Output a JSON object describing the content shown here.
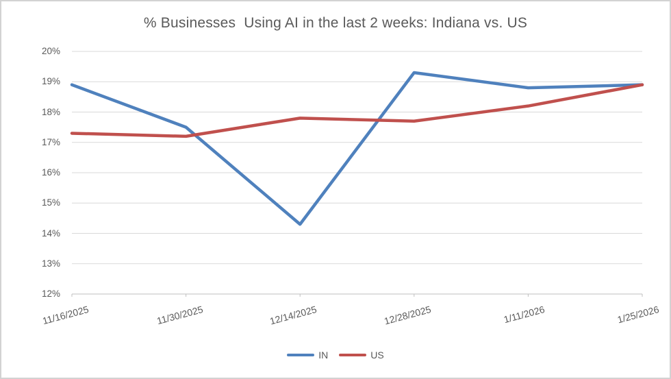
{
  "chart_data": {
    "type": "line",
    "title": "% Businesses  Using AI in the last 2 weeks: Indiana vs. US",
    "categories": [
      "11/16/2025",
      "11/30/2025",
      "12/14/2025",
      "12/28/2025",
      "1/11/2026",
      "1/25/2026"
    ],
    "series": [
      {
        "name": "IN",
        "color": "#4F81BD",
        "values": [
          18.9,
          17.5,
          14.3,
          19.3,
          18.8,
          18.9
        ]
      },
      {
        "name": "US",
        "color": "#C0504D",
        "values": [
          17.3,
          17.2,
          17.8,
          17.7,
          18.2,
          18.9
        ]
      }
    ],
    "y_ticks": [
      "20%",
      "19%",
      "18%",
      "17%",
      "16%",
      "15%",
      "14%",
      "13%",
      "12%"
    ],
    "y_min": 12,
    "y_max": 20,
    "y_step": 1,
    "y_unit": "%",
    "grid": true,
    "legend_position": "bottom",
    "colors": {
      "text": "#595959",
      "gridline": "#D9D9D9",
      "axis": "#BFBFBF",
      "background": "#FFFFFF"
    }
  }
}
